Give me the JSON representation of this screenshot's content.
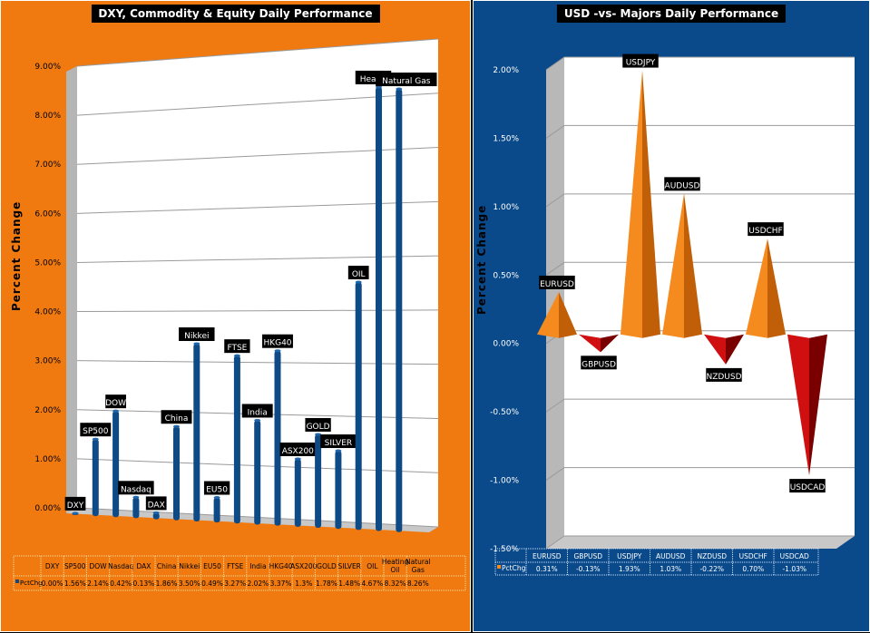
{
  "left": {
    "title": "DXY, Commodity & Equity Daily Performance",
    "ylabel": "Percent Change",
    "legend_label": "PctChg",
    "bar_color": "#0d4a86",
    "chart_data": {
      "type": "bar",
      "title": "DXY, Commodity & Equity Daily Performance",
      "ylabel": "Percent Change",
      "ylim": [
        0,
        9
      ],
      "yticks": [
        "0.00%",
        "1.00%",
        "2.00%",
        "3.00%",
        "4.00%",
        "5.00%",
        "6.00%",
        "7.00%",
        "8.00%",
        "9.00%"
      ],
      "categories": [
        "DXY",
        "SP500",
        "DOW",
        "Nasdaq",
        "DAX",
        "China",
        "Nikkei",
        "EU50",
        "FTSE",
        "India",
        "HKG40",
        "ASX200",
        "GOLD",
        "SILVER",
        "OIL",
        "Heating Oil",
        "Natural Gas"
      ],
      "table_headers": [
        "DXY",
        "SP500",
        "DOW",
        "Nasdaq",
        "DAX",
        "China",
        "Nikkei",
        "EU50",
        "FTSE",
        "India",
        "HKG40",
        "ASX200",
        "GOLD",
        "SILVER",
        "OIL",
        "Heating\nOil",
        "Natural\nGas"
      ],
      "bar_labels": [
        "DXY",
        "SP500",
        "DOW",
        "Nasdaq",
        "DAX",
        "China",
        "Nikkei",
        "EU50",
        "FTSE",
        "India",
        "HKG40",
        "ASX200",
        "GOLD",
        "SILVER",
        "OIL",
        "Heatin",
        "Natural Gas"
      ],
      "values": [
        0.0,
        1.56,
        2.14,
        0.42,
        0.13,
        1.86,
        3.5,
        0.49,
        3.27,
        2.02,
        3.37,
        1.3,
        1.78,
        1.48,
        4.67,
        8.32,
        8.26
      ],
      "value_labels": [
        "0.00%",
        "1.56%",
        "2.14%",
        "0.42%",
        "0.13%",
        "1.86%",
        "3.50%",
        "0.49%",
        "3.27%",
        "2.02%",
        "3.37%",
        "1.3%",
        "1.78%",
        "1.48%",
        "4.67%",
        "8.32%",
        "8.26%"
      ],
      "grid": true,
      "legend": "table-bottom"
    }
  },
  "right": {
    "title": "USD -vs- Majors Daily Performance",
    "ylabel": "Percent Change",
    "legend_label": "PctChg",
    "pos_color": "#f58a1f",
    "neg_color": "#d01010",
    "chart_data": {
      "type": "bar",
      "title": "USD -vs- Majors Daily Performance",
      "ylabel": "Percent Change",
      "ylim": [
        -1.5,
        2.0
      ],
      "yticks": [
        "-1.50%",
        "-1.00%",
        "-0.50%",
        "0.00%",
        "0.50%",
        "1.00%",
        "1.50%",
        "2.00%"
      ],
      "categories": [
        "EURUSD",
        "GBPUSD",
        "USDJPY",
        "AUDUSD",
        "NZDUSD",
        "USDCHF",
        "USDCAD"
      ],
      "values": [
        0.31,
        -0.13,
        1.93,
        1.03,
        -0.22,
        0.7,
        -1.03
      ],
      "value_labels": [
        "0.31%",
        "-0.13%",
        "1.93%",
        "1.03%",
        "-0.22%",
        "0.70%",
        "-1.03%"
      ],
      "grid": true,
      "legend": "table-bottom"
    }
  }
}
